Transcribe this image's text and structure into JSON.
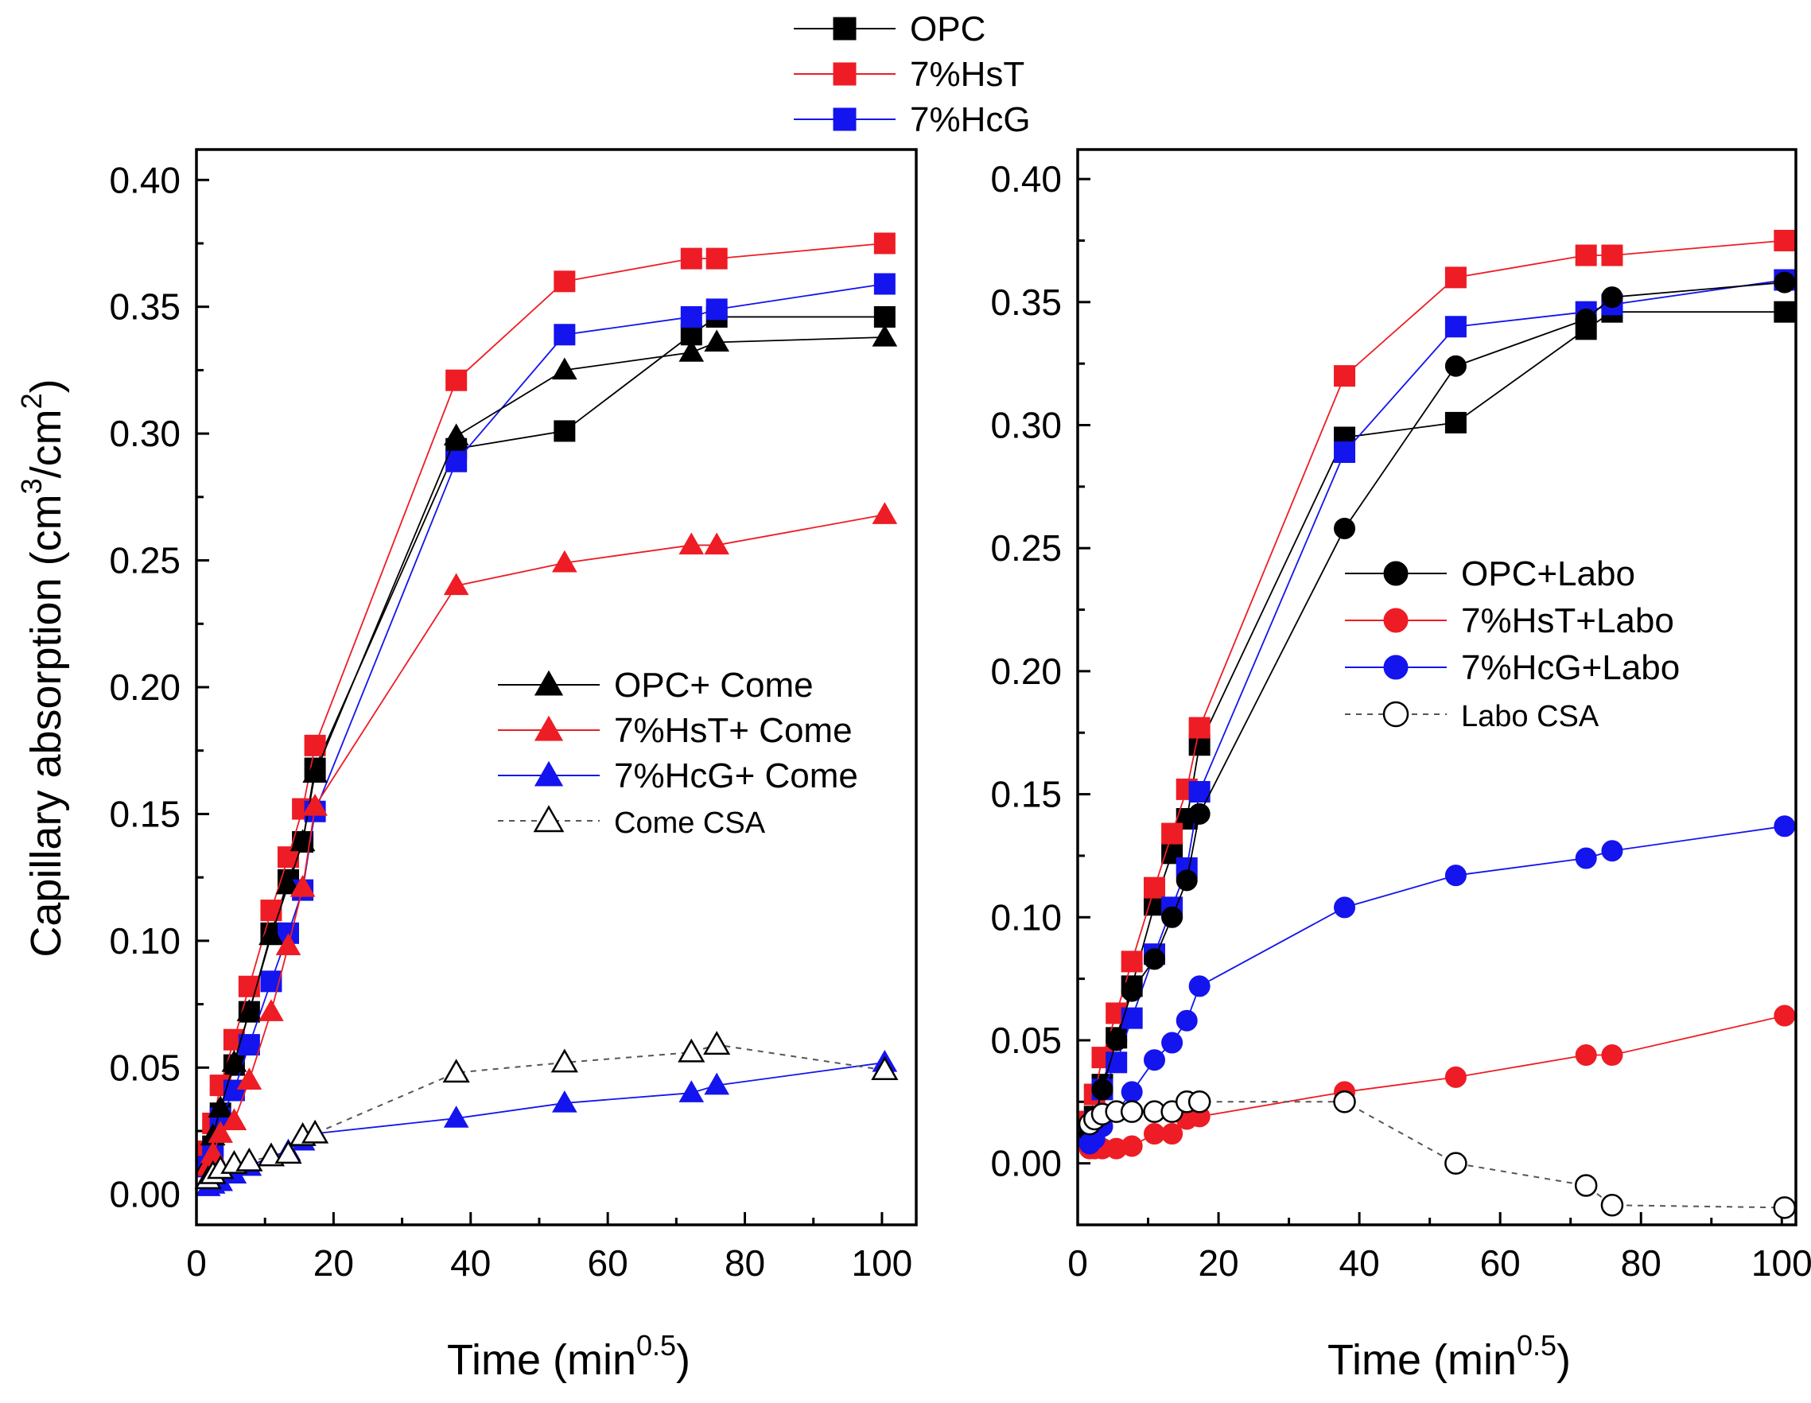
{
  "colors": {
    "black": "#000000",
    "red": "#ee1c24",
    "blue": "#1414ee",
    "gray": "#555555",
    "white": "#ffffff"
  },
  "chart_data": [
    {
      "type": "line",
      "panel": "left",
      "xlabel": "Time (min",
      "xlabel_sup": "0.5",
      "xlabel_end": ")",
      "ylabel": "Capillary absorption (cm",
      "ylabel_sup1": "3",
      "ylabel_mid": "/cm",
      "ylabel_sup2": "2",
      "ylabel_end": ")",
      "xlim": [
        0,
        105
      ],
      "ylim": [
        -0.012,
        0.412
      ],
      "xticks": [
        0,
        20,
        40,
        60,
        80,
        100
      ],
      "xtick_labels": [
        "0",
        "20",
        "40",
        "60",
        "80",
        "100"
      ],
      "yticks": [
        0.0,
        0.05,
        0.1,
        0.15,
        0.2,
        0.25,
        0.3,
        0.35,
        0.4
      ],
      "ytick_labels": [
        "0.00",
        "0.05",
        "0.10",
        "0.15",
        "0.20",
        "0.25",
        "0.30",
        "0.35",
        "0.40"
      ],
      "legend_top": [
        {
          "label": "OPC",
          "color": "black",
          "marker": "square-filled"
        },
        {
          "label": "7%HsT",
          "color": "red",
          "marker": "square-filled"
        },
        {
          "label": "7%HcG",
          "color": "blue",
          "marker": "square-filled"
        }
      ],
      "legend_inner": [
        {
          "label": "OPC+ Come",
          "color": "black",
          "marker": "triangle-filled",
          "dashed": false,
          "small": false
        },
        {
          "label": "7%HsT+ Come",
          "color": "red",
          "marker": "triangle-filled",
          "dashed": false,
          "small": false
        },
        {
          "label": "7%HcG+ Come",
          "color": "blue",
          "marker": "triangle-filled",
          "dashed": false,
          "small": false
        },
        {
          "label": "Come CSA",
          "color": "gray",
          "marker": "triangle-open",
          "dashed": true,
          "small": true
        }
      ],
      "series": [
        {
          "name": "OPC",
          "color": "black",
          "marker": "square-filled",
          "dashed": false,
          "x": [
            1.7,
            2.4,
            3.5,
            5.5,
            7.7,
            10.9,
            13.4,
            15.5,
            17.3,
            37.9,
            53.7,
            72.2,
            75.9,
            100.4
          ],
          "y": [
            0.011,
            0.019,
            0.032,
            0.051,
            0.072,
            0.103,
            0.124,
            0.139,
            0.168,
            0.294,
            0.301,
            0.339,
            0.346,
            0.346
          ]
        },
        {
          "name": "7%HsT",
          "color": "red",
          "marker": "square-filled",
          "dashed": false,
          "x": [
            1.7,
            2.4,
            3.5,
            5.5,
            7.7,
            10.9,
            13.4,
            15.5,
            17.3,
            37.9,
            53.7,
            72.2,
            75.9,
            100.4
          ],
          "y": [
            0.017,
            0.028,
            0.043,
            0.061,
            0.082,
            0.112,
            0.133,
            0.152,
            0.177,
            0.321,
            0.36,
            0.369,
            0.369,
            0.375
          ]
        },
        {
          "name": "7%HcG",
          "color": "blue",
          "marker": "square-filled",
          "dashed": false,
          "x": [
            1.7,
            2.4,
            3.5,
            5.5,
            7.7,
            10.9,
            13.4,
            15.5,
            17.3,
            37.9,
            53.7,
            72.2,
            75.9,
            100.4
          ],
          "y": [
            0.011,
            0.017,
            0.03,
            0.041,
            0.059,
            0.084,
            0.103,
            0.12,
            0.151,
            0.289,
            0.339,
            0.346,
            0.349,
            0.359
          ]
        },
        {
          "name": "OPC+ Come",
          "color": "black",
          "marker": "triangle-filled",
          "dashed": false,
          "x": [
            1.7,
            2.4,
            3.5,
            5.5,
            7.7,
            10.9,
            13.4,
            15.5,
            17.3,
            37.9,
            53.7,
            72.2,
            75.9,
            100.4
          ],
          "y": [
            0.012,
            0.023,
            0.034,
            0.052,
            0.072,
            0.102,
            0.122,
            0.139,
            0.166,
            0.299,
            0.325,
            0.332,
            0.336,
            0.338
          ]
        },
        {
          "name": "7%HsT+ Come",
          "color": "red",
          "marker": "triangle-filled",
          "dashed": false,
          "x": [
            1.7,
            2.4,
            3.5,
            5.5,
            7.7,
            10.9,
            13.4,
            15.5,
            17.3,
            37.9,
            53.7,
            72.2,
            75.9,
            100.4
          ],
          "y": [
            0.011,
            0.016,
            0.024,
            0.029,
            0.045,
            0.072,
            0.098,
            0.121,
            0.153,
            0.24,
            0.249,
            0.256,
            0.256,
            0.268
          ]
        },
        {
          "name": "7%HcG+ Come",
          "color": "blue",
          "marker": "triangle-filled",
          "dashed": false,
          "x": [
            1.7,
            2.4,
            3.5,
            5.5,
            7.7,
            10.9,
            13.4,
            15.5,
            17.3,
            37.9,
            53.7,
            72.2,
            75.9,
            100.4
          ],
          "y": [
            0.003,
            0.004,
            0.005,
            0.008,
            0.011,
            0.015,
            0.017,
            0.021,
            0.024,
            0.03,
            0.036,
            0.04,
            0.043,
            0.052
          ]
        },
        {
          "name": "Come CSA",
          "color": "gray",
          "marker": "triangle-open",
          "dashed": true,
          "x": [
            1.7,
            2.4,
            3.5,
            5.5,
            7.7,
            10.9,
            13.4,
            15.5,
            17.3,
            37.9,
            53.7,
            72.2,
            75.9,
            100.4
          ],
          "y": [
            0.006,
            0.008,
            0.01,
            0.012,
            0.013,
            0.015,
            0.016,
            0.023,
            0.024,
            0.048,
            0.052,
            0.056,
            0.059,
            0.049
          ]
        }
      ]
    },
    {
      "type": "line",
      "panel": "right",
      "xlabel": "Time (min",
      "xlabel_sup": "0.5",
      "xlabel_end": ")",
      "xlim": [
        0,
        102
      ],
      "ylim": [
        -0.025,
        0.412
      ],
      "xticks": [
        0,
        20,
        40,
        60,
        80,
        100
      ],
      "xtick_labels": [
        "0",
        "20",
        "40",
        "60",
        "80",
        "100"
      ],
      "yticks": [
        0.0,
        0.05,
        0.1,
        0.15,
        0.2,
        0.25,
        0.3,
        0.35,
        0.4
      ],
      "ytick_labels": [
        "0.00",
        "0.05",
        "0.10",
        "0.15",
        "0.20",
        "0.25",
        "0.30",
        "0.35",
        "0.40"
      ],
      "legend_inner": [
        {
          "label": "OPC+Labo",
          "color": "black",
          "marker": "circle-filled",
          "dashed": false,
          "small": false
        },
        {
          "label": "7%HsT+Labo",
          "color": "red",
          "marker": "circle-filled",
          "dashed": false,
          "small": false
        },
        {
          "label": "7%HcG+Labo",
          "color": "blue",
          "marker": "circle-filled",
          "dashed": false,
          "small": false
        },
        {
          "label": "Labo CSA",
          "color": "gray",
          "marker": "circle-open",
          "dashed": true,
          "small": true
        }
      ],
      "series": [
        {
          "name": "OPC",
          "color": "black",
          "marker": "square-filled",
          "dashed": false,
          "x": [
            1.7,
            2.4,
            3.5,
            5.5,
            7.7,
            10.9,
            13.4,
            15.5,
            17.3,
            37.9,
            53.7,
            72.2,
            75.9,
            100.4
          ],
          "y": [
            0.011,
            0.019,
            0.032,
            0.051,
            0.072,
            0.105,
            0.126,
            0.14,
            0.17,
            0.295,
            0.301,
            0.339,
            0.346,
            0.346
          ]
        },
        {
          "name": "7%HsT",
          "color": "red",
          "marker": "square-filled",
          "dashed": false,
          "x": [
            1.7,
            2.4,
            3.5,
            5.5,
            7.7,
            10.9,
            13.4,
            15.5,
            17.3,
            37.9,
            53.7,
            72.2,
            75.9,
            100.4
          ],
          "y": [
            0.017,
            0.028,
            0.043,
            0.061,
            0.082,
            0.112,
            0.134,
            0.152,
            0.177,
            0.32,
            0.36,
            0.369,
            0.369,
            0.375
          ]
        },
        {
          "name": "7%HcG",
          "color": "blue",
          "marker": "square-filled",
          "dashed": false,
          "x": [
            1.7,
            2.4,
            3.5,
            5.5,
            7.7,
            10.9,
            13.4,
            15.5,
            17.3,
            37.9,
            53.7,
            72.2,
            75.9,
            100.4
          ],
          "y": [
            0.011,
            0.017,
            0.03,
            0.041,
            0.059,
            0.085,
            0.104,
            0.12,
            0.151,
            0.289,
            0.34,
            0.346,
            0.349,
            0.359
          ]
        },
        {
          "name": "OPC+Labo",
          "color": "black",
          "marker": "circle-filled",
          "dashed": false,
          "x": [
            1.7,
            2.4,
            3.5,
            5.5,
            7.7,
            10.9,
            13.4,
            15.5,
            17.3,
            37.9,
            53.7,
            72.2,
            75.9,
            100.4
          ],
          "y": [
            0.012,
            0.019,
            0.03,
            0.05,
            0.07,
            0.083,
            0.1,
            0.115,
            0.142,
            0.258,
            0.324,
            0.343,
            0.352,
            0.358
          ]
        },
        {
          "name": "7%HsT+Labo",
          "color": "red",
          "marker": "circle-filled",
          "dashed": false,
          "x": [
            1.7,
            2.4,
            3.5,
            5.5,
            7.7,
            10.9,
            13.4,
            15.5,
            17.3,
            37.9,
            53.7,
            72.2,
            75.9,
            100.4
          ],
          "y": [
            0.006,
            0.006,
            0.006,
            0.006,
            0.007,
            0.012,
            0.012,
            0.018,
            0.019,
            0.029,
            0.035,
            0.044,
            0.044,
            0.06
          ]
        },
        {
          "name": "7%HcG+Labo",
          "color": "blue",
          "marker": "circle-filled",
          "dashed": false,
          "x": [
            1.7,
            2.4,
            3.5,
            5.5,
            7.7,
            10.9,
            13.4,
            15.5,
            17.3,
            37.9,
            53.7,
            72.2,
            75.9,
            100.4
          ],
          "y": [
            0.008,
            0.01,
            0.015,
            0.021,
            0.029,
            0.042,
            0.049,
            0.058,
            0.072,
            0.104,
            0.117,
            0.124,
            0.127,
            0.137
          ]
        },
        {
          "name": "Labo CSA",
          "color": "gray",
          "marker": "circle-open",
          "dashed": true,
          "x": [
            1.7,
            2.4,
            3.5,
            5.5,
            7.7,
            10.9,
            13.4,
            15.5,
            17.3,
            37.9,
            53.7,
            72.2,
            75.9,
            100.4
          ],
          "y": [
            0.016,
            0.018,
            0.02,
            0.021,
            0.021,
            0.021,
            0.021,
            0.025,
            0.025,
            0.025,
            0.0,
            -0.009,
            -0.017,
            -0.018
          ]
        }
      ]
    }
  ]
}
